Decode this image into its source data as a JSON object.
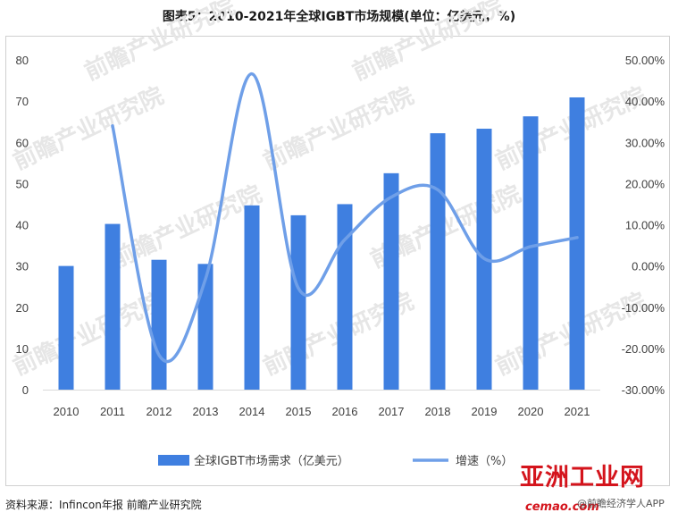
{
  "title": "图表5：2010-2021年全球IGBT市场规模(单位：亿美元，%)",
  "source": "资料来源：Infincon年报 前瞻产业研究院",
  "watermark_text": "前瞻产业研究院",
  "brand": {
    "logo": "亚洲工业网",
    "url": "cemao.com",
    "app": "@前瞻经济学人APP"
  },
  "colors": {
    "bar": "#3f7fe0",
    "line": "#6f9fe8",
    "grid": "#e3e3e3",
    "brand": "#d4141c"
  },
  "chart_data": {
    "type": "bar",
    "categories": [
      "2010",
      "2011",
      "2012",
      "2013",
      "2014",
      "2015",
      "2016",
      "2017",
      "2018",
      "2019",
      "2020",
      "2021"
    ],
    "series": [
      {
        "name": "全球IGBT市场需求（亿美元）",
        "type": "bar",
        "axis": "left",
        "values": [
          30,
          40.2,
          31.5,
          30.5,
          44.7,
          42.3,
          45,
          52.5,
          62.2,
          63.3,
          66.3,
          70.9
        ]
      },
      {
        "name": "增速（%）",
        "type": "line",
        "smooth": true,
        "axis": "right",
        "values": [
          null,
          34.0,
          -21.6,
          -3.2,
          46.6,
          -5.4,
          6.4,
          16.7,
          18.5,
          1.8,
          4.7,
          6.9
        ]
      }
    ],
    "y_left": {
      "min": 0,
      "max": 80,
      "step": 10,
      "ticks": [
        "0",
        "10",
        "20",
        "30",
        "40",
        "50",
        "60",
        "70",
        "80"
      ]
    },
    "y_right": {
      "min": -30,
      "max": 50,
      "step": 10,
      "ticks": [
        "-30.00%",
        "-20.00%",
        "-10.00%",
        "0.00%",
        "10.00%",
        "20.00%",
        "30.00%",
        "40.00%",
        "50.00%"
      ]
    },
    "grid": false,
    "legend_position": "bottom"
  }
}
